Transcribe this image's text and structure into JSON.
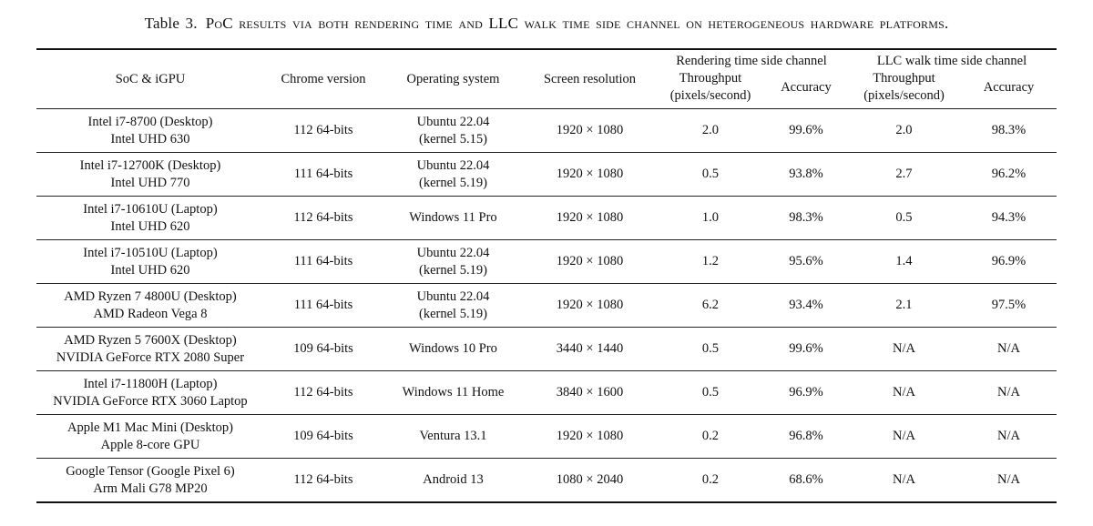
{
  "caption": {
    "label": "Table 3.",
    "text": "PoC results via both rendering time and LLC walk time side channel on heterogeneous hardware platforms."
  },
  "table": {
    "columns": [
      "SoC & iGPU",
      "Chrome version",
      "Operating system",
      "Screen resolution"
    ],
    "groups": [
      {
        "label": "Rendering time side channel",
        "throughput_line1": "Throughput",
        "throughput_line2": "(pixels/second)",
        "accuracy": "Accuracy"
      },
      {
        "label": "LLC walk time side channel",
        "throughput_line1": "Throughput",
        "throughput_line2": "(pixels/second)",
        "accuracy": "Accuracy"
      }
    ],
    "rows": [
      {
        "soc": [
          "Intel i7-8700 (Desktop)",
          "Intel UHD 630"
        ],
        "chrome": "112 64-bits",
        "os": [
          "Ubuntu 22.04",
          "(kernel 5.15)"
        ],
        "resolution": "1920 × 1080",
        "render_throughput": "2.0",
        "render_accuracy": "99.6%",
        "llc_throughput": "2.0",
        "llc_accuracy": "98.3%"
      },
      {
        "soc": [
          "Intel i7-12700K (Desktop)",
          "Intel UHD 770"
        ],
        "chrome": "111 64-bits",
        "os": [
          "Ubuntu 22.04",
          "(kernel 5.19)"
        ],
        "resolution": "1920 × 1080",
        "render_throughput": "0.5",
        "render_accuracy": "93.8%",
        "llc_throughput": "2.7",
        "llc_accuracy": "96.2%"
      },
      {
        "soc": [
          "Intel i7-10610U (Laptop)",
          "Intel UHD 620"
        ],
        "chrome": "112 64-bits",
        "os": "Windows 11 Pro",
        "resolution": "1920 × 1080",
        "render_throughput": "1.0",
        "render_accuracy": "98.3%",
        "llc_throughput": "0.5",
        "llc_accuracy": "94.3%"
      },
      {
        "soc": [
          "Intel i7-10510U (Laptop)",
          "Intel UHD 620"
        ],
        "chrome": "111 64-bits",
        "os": [
          "Ubuntu 22.04",
          "(kernel 5.19)"
        ],
        "resolution": "1920 × 1080",
        "render_throughput": "1.2",
        "render_accuracy": "95.6%",
        "llc_throughput": "1.4",
        "llc_accuracy": "96.9%"
      },
      {
        "soc": [
          "AMD Ryzen 7 4800U (Desktop)",
          "AMD Radeon Vega 8"
        ],
        "chrome": "111 64-bits",
        "os": [
          "Ubuntu 22.04",
          "(kernel 5.19)"
        ],
        "resolution": "1920 × 1080",
        "render_throughput": "6.2",
        "render_accuracy": "93.4%",
        "llc_throughput": "2.1",
        "llc_accuracy": "97.5%"
      },
      {
        "soc": [
          "AMD Ryzen 5 7600X (Desktop)",
          "NVIDIA GeForce RTX 2080 Super"
        ],
        "chrome": "109 64-bits",
        "os": "Windows 10 Pro",
        "resolution": "3440 × 1440",
        "render_throughput": "0.5",
        "render_accuracy": "99.6%",
        "llc_throughput": "N/A",
        "llc_accuracy": "N/A"
      },
      {
        "soc": [
          "Intel i7-11800H (Laptop)",
          "NVIDIA GeForce RTX 3060 Laptop"
        ],
        "chrome": "112 64-bits",
        "os": "Windows 11 Home",
        "resolution": "3840 × 1600",
        "render_throughput": "0.5",
        "render_accuracy": "96.9%",
        "llc_throughput": "N/A",
        "llc_accuracy": "N/A"
      },
      {
        "soc": [
          "Apple M1 Mac Mini (Desktop)",
          "Apple 8-core GPU"
        ],
        "chrome": "109 64-bits",
        "os": "Ventura 13.1",
        "resolution": "1920 × 1080",
        "render_throughput": "0.2",
        "render_accuracy": "96.8%",
        "llc_throughput": "N/A",
        "llc_accuracy": "N/A"
      },
      {
        "soc": [
          "Google Tensor (Google Pixel 6)",
          "Arm Mali G78 MP20"
        ],
        "chrome": "112 64-bits",
        "os": "Android 13",
        "resolution": "1080 × 2040",
        "render_throughput": "0.2",
        "render_accuracy": "68.6%",
        "llc_throughput": "N/A",
        "llc_accuracy": "N/A"
      }
    ]
  }
}
